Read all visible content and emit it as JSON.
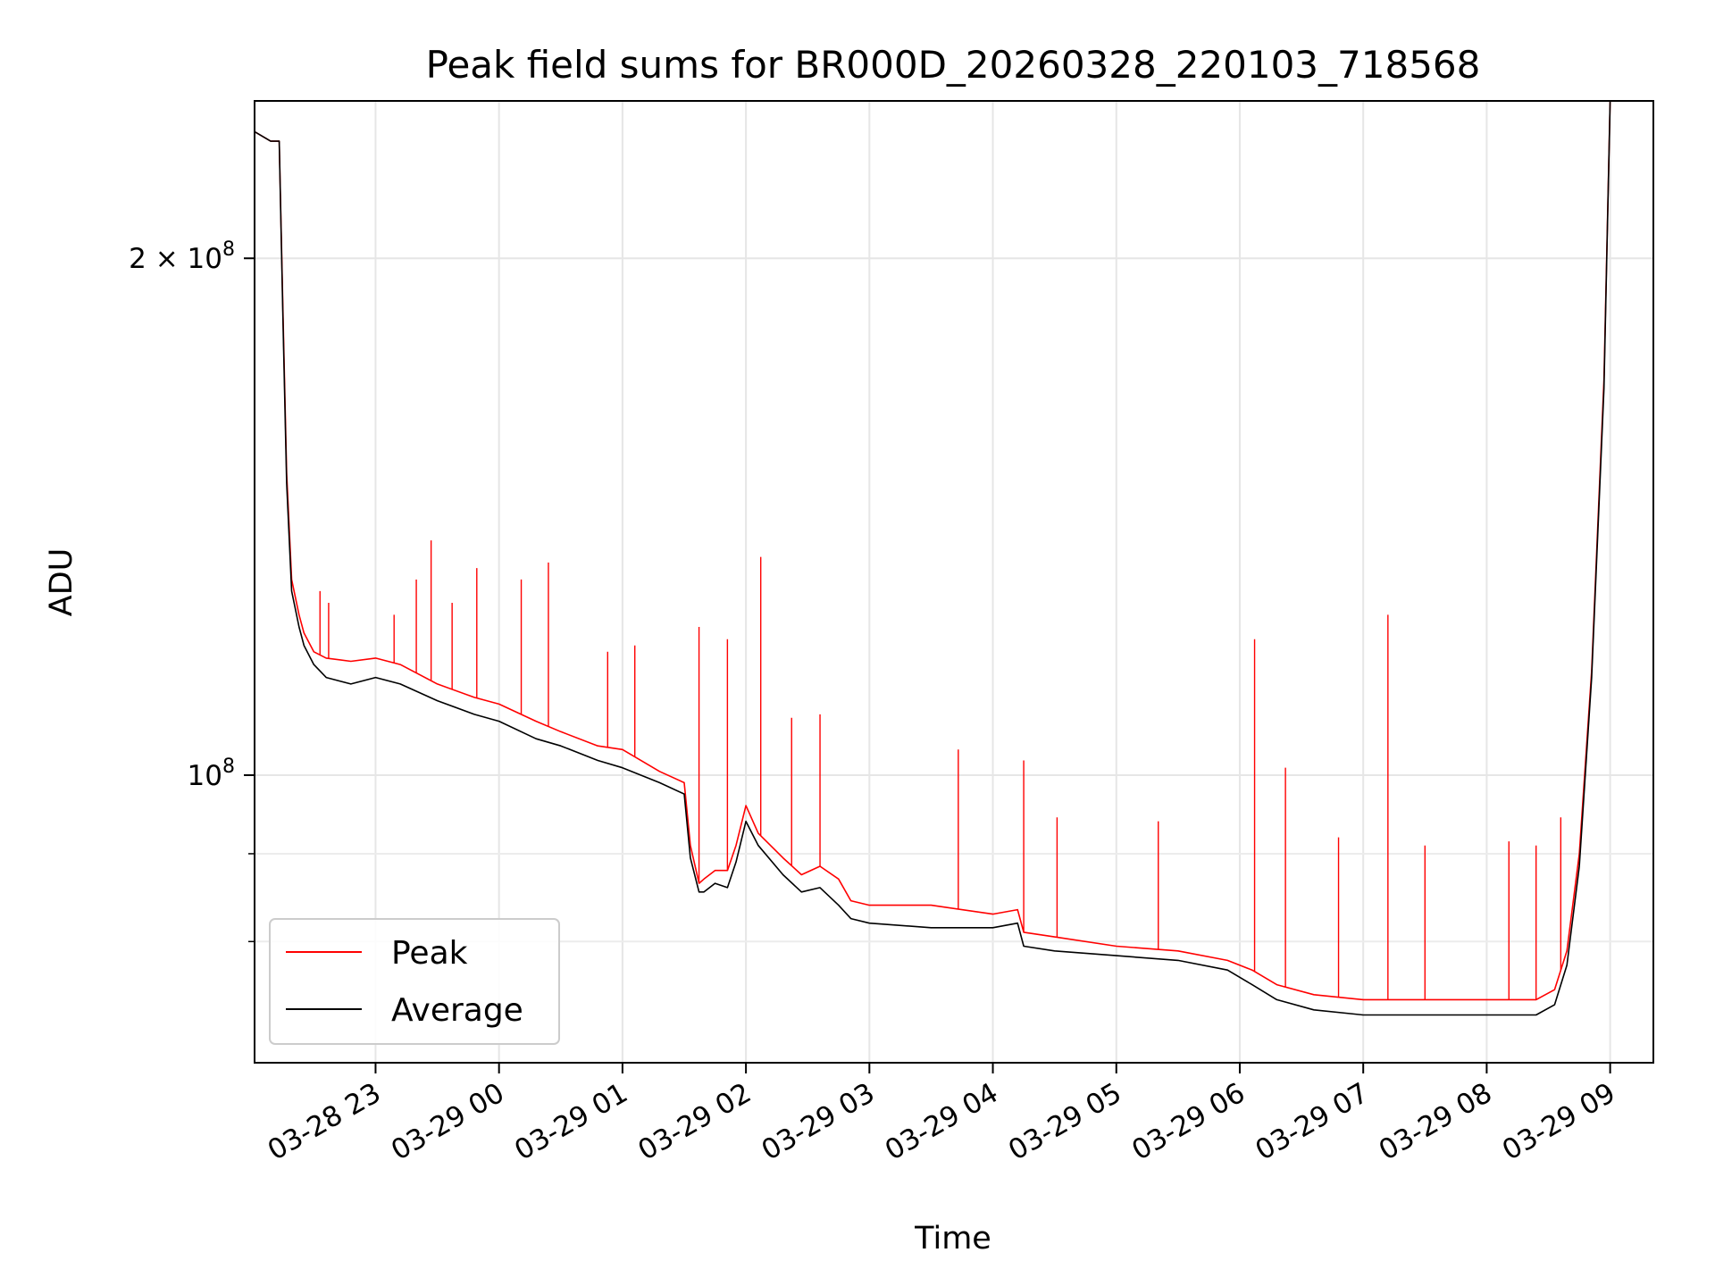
{
  "chart_data": {
    "type": "line",
    "title": "Peak field sums for BR000D_20260328_220103_718568",
    "xlabel": "Time",
    "ylabel": "ADU",
    "yscale": "log",
    "grid": true,
    "legend_position": "lower-left",
    "x_tick_labels": [
      "03-28 23",
      "03-29 00",
      "03-29 01",
      "03-29 02",
      "03-29 03",
      "03-29 04",
      "03-29 05",
      "03-29 06",
      "03-29 07",
      "03-29 08",
      "03-29 09"
    ],
    "x_tick_hours": [
      23,
      24,
      25,
      26,
      27,
      28,
      29,
      30,
      31,
      32,
      33
    ],
    "xlim_hours": [
      22.02,
      33.35
    ],
    "ylim": [
      68000000,
      247000000
    ],
    "y_major_ticks": [
      {
        "value": 200000000,
        "mant": "2 × 10",
        "exp": "8"
      },
      {
        "value": 100000000,
        "mant": "10",
        "exp": "8"
      }
    ],
    "y_minor_ticks": [
      80000000,
      90000000
    ],
    "colors": {
      "Peak": "#ff0000",
      "Average": "#000000"
    },
    "series": [
      {
        "name": "Peak",
        "x_hours": [
          22.02,
          22.15,
          22.22,
          22.25,
          22.28,
          22.32,
          22.38,
          22.42,
          22.5,
          22.6,
          22.8,
          23.0,
          23.2,
          23.5,
          23.8,
          24.0,
          24.3,
          24.5,
          24.8,
          25.0,
          25.3,
          25.5,
          25.55,
          25.62,
          25.66,
          25.75,
          25.85,
          25.92,
          26.0,
          26.1,
          26.3,
          26.45,
          26.6,
          26.75,
          26.85,
          27.0,
          27.5,
          28.0,
          28.2,
          28.25,
          28.5,
          29.0,
          29.5,
          29.9,
          30.1,
          30.3,
          30.6,
          31.0,
          31.5,
          32.0,
          32.2,
          32.4,
          32.55,
          32.65,
          32.75,
          32.85,
          32.95,
          33.0
        ],
        "y": [
          237000000,
          234000000,
          234000000,
          186000000,
          150000000,
          130000000,
          124000000,
          121000000,
          118000000,
          117000000,
          116500000,
          117000000,
          116000000,
          113000000,
          111000000,
          110000000,
          107500000,
          106000000,
          104000000,
          103500000,
          100500000,
          99000000,
          91000000,
          86500000,
          87000000,
          88000000,
          88000000,
          91000000,
          96000000,
          92500000,
          89500000,
          87500000,
          88500000,
          87000000,
          84500000,
          84000000,
          84000000,
          83000000,
          83500000,
          81000000,
          80500000,
          79500000,
          79000000,
          78000000,
          77000000,
          75500000,
          74500000,
          74000000,
          74000000,
          74000000,
          74000000,
          74000000,
          75000000,
          79000000,
          90000000,
          115000000,
          170000000,
          247000000
        ],
        "spikes": [
          {
            "x_hour": 22.55,
            "y": 128000000
          },
          {
            "x_hour": 22.62,
            "y": 126000000
          },
          {
            "x_hour": 23.15,
            "y": 124000000
          },
          {
            "x_hour": 23.33,
            "y": 130000000
          },
          {
            "x_hour": 23.45,
            "y": 137000000
          },
          {
            "x_hour": 23.62,
            "y": 126000000
          },
          {
            "x_hour": 23.82,
            "y": 132000000
          },
          {
            "x_hour": 24.18,
            "y": 130000000
          },
          {
            "x_hour": 24.4,
            "y": 133000000
          },
          {
            "x_hour": 24.88,
            "y": 118000000
          },
          {
            "x_hour": 25.1,
            "y": 119000000
          },
          {
            "x_hour": 25.62,
            "y": 122000000
          },
          {
            "x_hour": 25.85,
            "y": 120000000
          },
          {
            "x_hour": 26.12,
            "y": 134000000
          },
          {
            "x_hour": 26.37,
            "y": 108000000
          },
          {
            "x_hour": 26.6,
            "y": 108500000
          },
          {
            "x_hour": 27.72,
            "y": 103500000
          },
          {
            "x_hour": 28.25,
            "y": 102000000
          },
          {
            "x_hour": 28.52,
            "y": 94500000
          },
          {
            "x_hour": 29.34,
            "y": 94000000
          },
          {
            "x_hour": 30.12,
            "y": 120000000
          },
          {
            "x_hour": 30.37,
            "y": 101000000
          },
          {
            "x_hour": 30.8,
            "y": 92000000
          },
          {
            "x_hour": 31.2,
            "y": 124000000
          },
          {
            "x_hour": 31.5,
            "y": 91000000
          },
          {
            "x_hour": 32.18,
            "y": 91500000
          },
          {
            "x_hour": 32.4,
            "y": 91000000
          },
          {
            "x_hour": 32.6,
            "y": 94500000
          }
        ]
      },
      {
        "name": "Average",
        "x_hours": [
          22.02,
          22.15,
          22.22,
          22.25,
          22.28,
          22.32,
          22.38,
          22.42,
          22.5,
          22.6,
          22.8,
          23.0,
          23.2,
          23.5,
          23.8,
          24.0,
          24.3,
          24.5,
          24.8,
          25.0,
          25.3,
          25.5,
          25.55,
          25.62,
          25.66,
          25.75,
          25.85,
          25.92,
          26.0,
          26.1,
          26.3,
          26.45,
          26.6,
          26.75,
          26.85,
          27.0,
          27.5,
          28.0,
          28.2,
          28.25,
          28.5,
          29.0,
          29.5,
          29.9,
          30.1,
          30.3,
          30.6,
          31.0,
          31.5,
          32.0,
          32.2,
          32.4,
          32.55,
          32.65,
          32.75,
          32.85,
          32.95,
          33.0
        ],
        "y": [
          237000000,
          234000000,
          234000000,
          184000000,
          148000000,
          128000000,
          122000000,
          119000000,
          116000000,
          114000000,
          113000000,
          114000000,
          113000000,
          110500000,
          108500000,
          107500000,
          105000000,
          104000000,
          102000000,
          101000000,
          99000000,
          97500000,
          89500000,
          85500000,
          85500000,
          86500000,
          86000000,
          89000000,
          94000000,
          91000000,
          87500000,
          85500000,
          86000000,
          84000000,
          82500000,
          82000000,
          81500000,
          81500000,
          82000000,
          79500000,
          79000000,
          78500000,
          78000000,
          77000000,
          75500000,
          74000000,
          73000000,
          72500000,
          72500000,
          72500000,
          72500000,
          72500000,
          73500000,
          77500000,
          88500000,
          114000000,
          168000000,
          247000000
        ],
        "spikes": []
      }
    ]
  }
}
